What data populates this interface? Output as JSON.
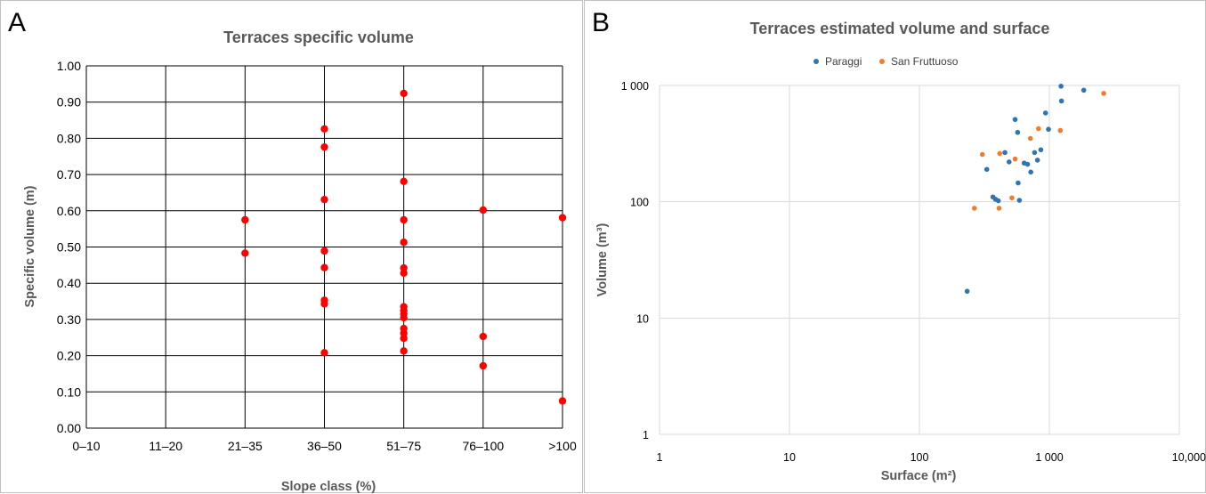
{
  "panel_a": {
    "letter": "A",
    "chart_data": {
      "type": "scatter",
      "title": "Terraces specific volume",
      "xlabel": "Slope class (%)",
      "ylabel": "Specific volume (m)",
      "categories": [
        "0–10",
        "11–20",
        "21–35",
        "36–50",
        "51–75",
        "76–100",
        ">100"
      ],
      "ylim": [
        0,
        1
      ],
      "y_ticks": [
        "0.00",
        "0.10",
        "0.20",
        "0.30",
        "0.40",
        "0.50",
        "0.60",
        "0.70",
        "0.80",
        "0.90",
        "1.00"
      ],
      "grid": true,
      "marker_color": "#ff0000",
      "points": [
        {
          "x": "21–35",
          "y": 0.575
        },
        {
          "x": "21–35",
          "y": 0.483
        },
        {
          "x": "36–50",
          "y": 0.826
        },
        {
          "x": "36–50",
          "y": 0.776
        },
        {
          "x": "36–50",
          "y": 0.631
        },
        {
          "x": "36–50",
          "y": 0.489
        },
        {
          "x": "36–50",
          "y": 0.443
        },
        {
          "x": "36–50",
          "y": 0.353
        },
        {
          "x": "36–50",
          "y": 0.343
        },
        {
          "x": "36–50",
          "y": 0.208
        },
        {
          "x": "51–75",
          "y": 0.924
        },
        {
          "x": "51–75",
          "y": 0.681
        },
        {
          "x": "51–75",
          "y": 0.575
        },
        {
          "x": "51–75",
          "y": 0.513
        },
        {
          "x": "51–75",
          "y": 0.442
        },
        {
          "x": "51–75",
          "y": 0.428
        },
        {
          "x": "51–75",
          "y": 0.335
        },
        {
          "x": "51–75",
          "y": 0.325
        },
        {
          "x": "51–75",
          "y": 0.315
        },
        {
          "x": "51–75",
          "y": 0.305
        },
        {
          "x": "51–75",
          "y": 0.275
        },
        {
          "x": "51–75",
          "y": 0.262
        },
        {
          "x": "51–75",
          "y": 0.248
        },
        {
          "x": "51–75",
          "y": 0.213
        },
        {
          "x": "76–100",
          "y": 0.602
        },
        {
          "x": "76–100",
          "y": 0.253
        },
        {
          "x": "76–100",
          "y": 0.172
        },
        {
          "x": ">100",
          "y": 0.581
        },
        {
          "x": ">100",
          "y": 0.075
        }
      ]
    }
  },
  "panel_b": {
    "letter": "B",
    "chart_data": {
      "type": "scatter",
      "title": "Terraces estimated volume and surface",
      "xlabel": "Surface (m²)",
      "ylabel": "Volume (m³)",
      "x_scale": "log",
      "y_scale": "log",
      "xlim": [
        1,
        10000
      ],
      "ylim": [
        1,
        1000
      ],
      "x_ticks": [
        "1",
        "10",
        "100",
        "1 000",
        "10,000"
      ],
      "y_ticks": [
        "1",
        "10",
        "100",
        "1 000"
      ],
      "grid": true,
      "legend_position": "top",
      "series": [
        {
          "name": "Paraggi",
          "color": "#2e75b6",
          "points": [
            [
              233,
              17
            ],
            [
              330,
              190
            ],
            [
              368,
              110
            ],
            [
              385,
              105
            ],
            [
              405,
              102
            ],
            [
              455,
              265
            ],
            [
              490,
              220
            ],
            [
              545,
              510
            ],
            [
              570,
              395
            ],
            [
              575,
              145
            ],
            [
              588,
              103
            ],
            [
              640,
              215
            ],
            [
              680,
              210
            ],
            [
              720,
              180
            ],
            [
              770,
              265
            ],
            [
              810,
              228
            ],
            [
              860,
              280
            ],
            [
              935,
              580
            ],
            [
              985,
              420
            ],
            [
              1230,
              985
            ],
            [
              1240,
              735
            ],
            [
              1840,
              910
            ]
          ]
        },
        {
          "name": "San Fruttuoso",
          "color": "#ed7d31",
          "points": [
            [
              265,
              88
            ],
            [
              305,
              255
            ],
            [
              410,
              88
            ],
            [
              415,
              260
            ],
            [
              515,
              108
            ],
            [
              545,
              233
            ],
            [
              715,
              350
            ],
            [
              825,
              425
            ],
            [
              1215,
              410
            ],
            [
              2620,
              855
            ]
          ]
        }
      ]
    }
  }
}
